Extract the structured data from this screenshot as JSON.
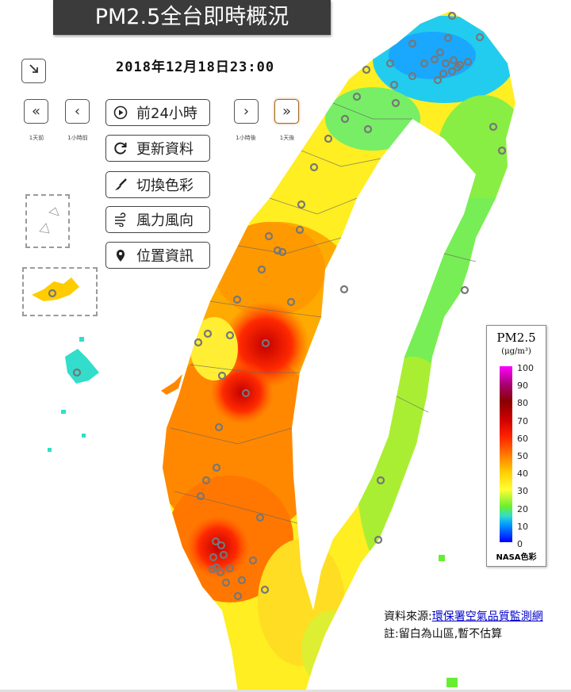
{
  "title": "PM2.5全台即時概況",
  "datetime": "2018年12月18日23:00",
  "nav": {
    "day_back_caption": "1天前",
    "hour_back_caption": "1小時前",
    "hour_fwd_caption": "1小時後",
    "day_fwd_caption": "1天後"
  },
  "buttons": {
    "last24": "前24小時",
    "refresh": "更新資料",
    "color": "切換色彩",
    "wind": "風力風向",
    "location": "位置資訊"
  },
  "legend": {
    "title": "PM2.5",
    "unit": "(μg/m³)",
    "ticks": [
      "100",
      "90",
      "80",
      "70",
      "60",
      "50",
      "40",
      "30",
      "20",
      "10",
      "0"
    ],
    "caption": "NASA色彩",
    "colors": [
      "#ff00ff",
      "#aa0077",
      "#8a0000",
      "#cc0000",
      "#ff2200",
      "#ff7700",
      "#ffcc00",
      "#ffff33",
      "#66ee33",
      "#33ddcc",
      "#0099ff",
      "#0000ff"
    ]
  },
  "source": {
    "label": "資料來源:",
    "link": "環保署空氣品質監測網",
    "note": "註:留白為山區,暫不估算"
  },
  "icons": {
    "expand": "expand-arrow-icon",
    "day_back": "double-chevron-left-icon",
    "hour_back": "chevron-left-icon",
    "hour_fwd": "chevron-right-icon",
    "day_fwd": "double-chevron-right-icon",
    "last24": "play-circle-icon",
    "refresh": "refresh-icon",
    "color": "paint-brush-icon",
    "wind": "wind-icon",
    "location": "map-pin-icon"
  }
}
